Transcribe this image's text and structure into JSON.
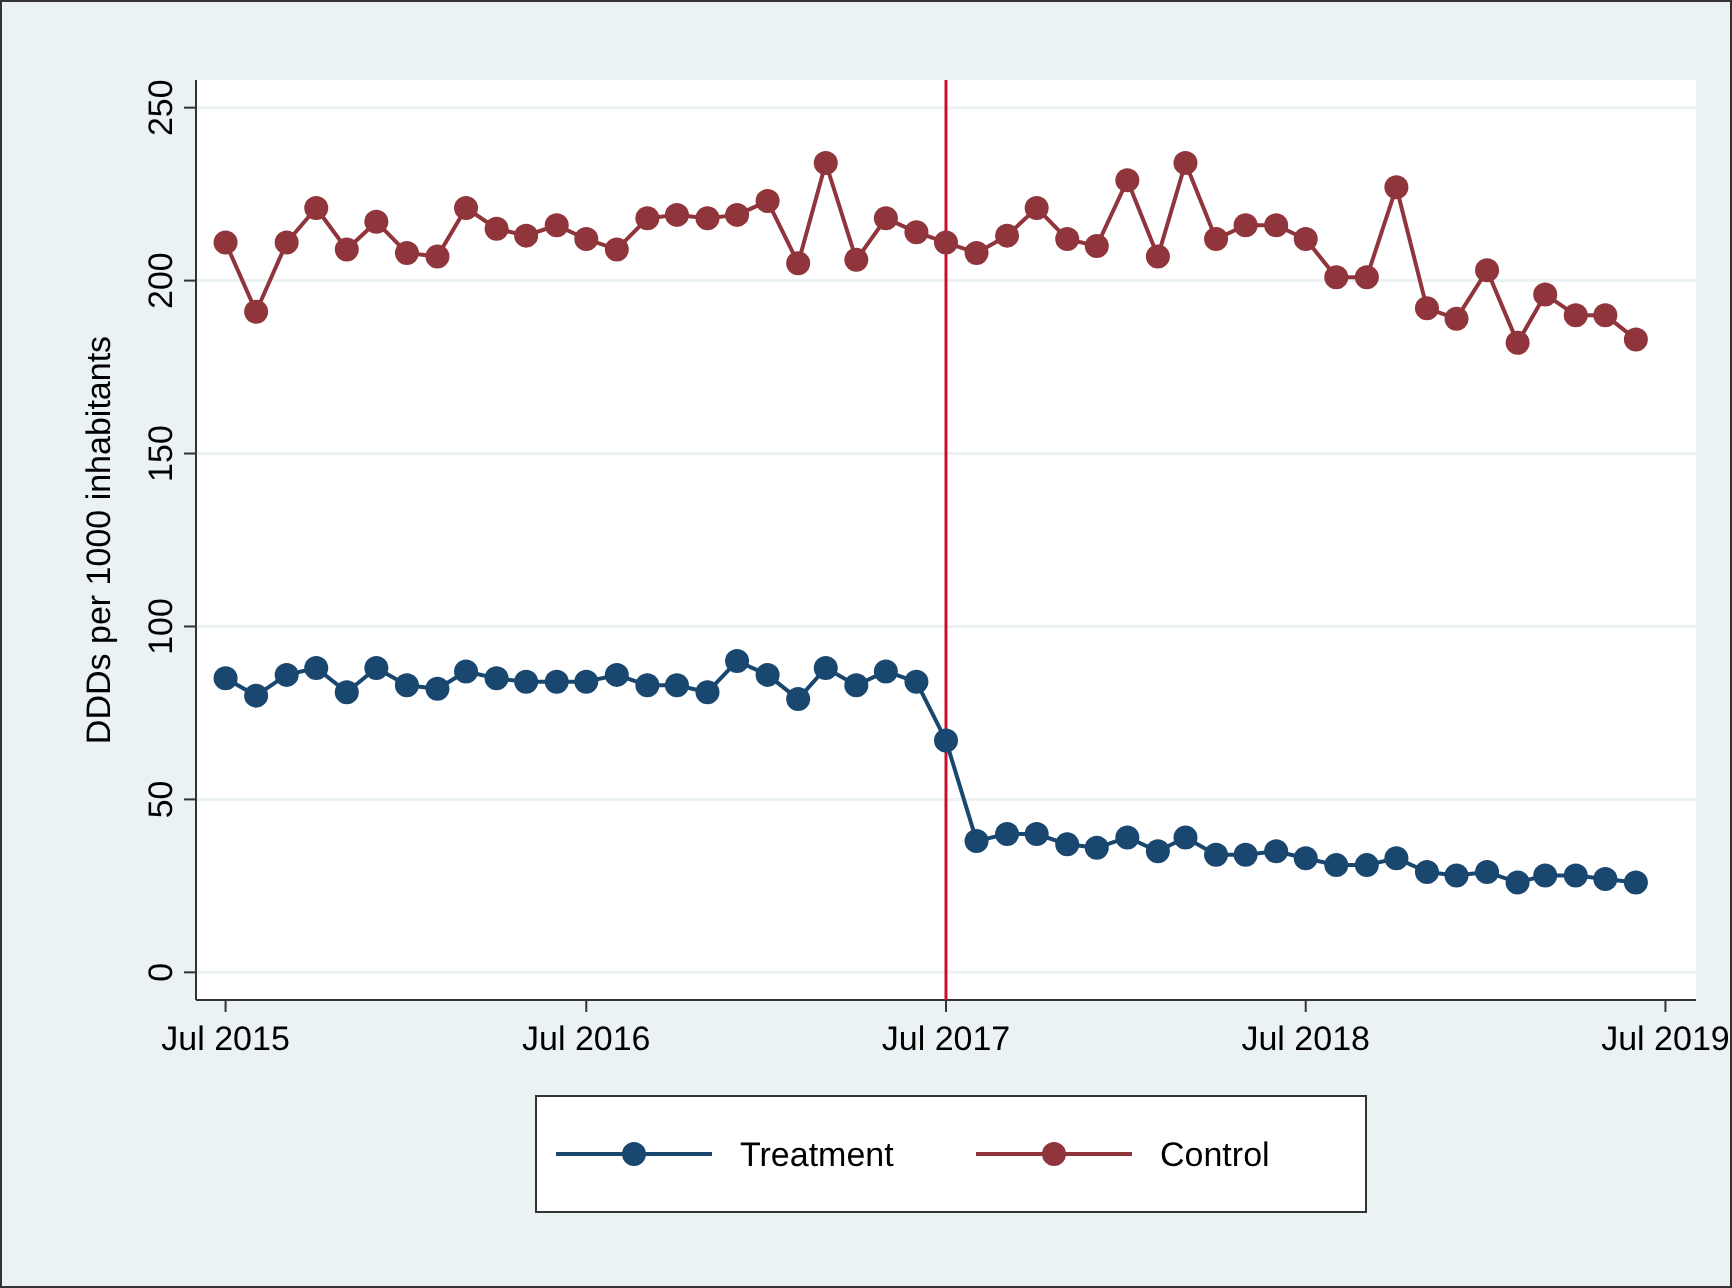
{
  "chart_data": {
    "type": "line",
    "ylabel": "DDDs per 1000 inhabitants",
    "x": [
      "2015-07",
      "2015-08",
      "2015-09",
      "2015-10",
      "2015-11",
      "2015-12",
      "2016-01",
      "2016-02",
      "2016-03",
      "2016-04",
      "2016-05",
      "2016-06",
      "2016-07",
      "2016-08",
      "2016-09",
      "2016-10",
      "2016-11",
      "2016-12",
      "2017-01",
      "2017-02",
      "2017-03",
      "2017-04",
      "2017-05",
      "2017-06",
      "2017-07",
      "2017-08",
      "2017-09",
      "2017-10",
      "2017-11",
      "2017-12",
      "2018-01",
      "2018-02",
      "2018-03",
      "2018-04",
      "2018-05",
      "2018-06",
      "2018-07",
      "2018-08",
      "2018-09",
      "2018-10",
      "2018-11",
      "2018-12",
      "2019-01",
      "2019-02",
      "2019-03",
      "2019-04",
      "2019-05",
      "2019-06"
    ],
    "series": [
      {
        "name": "Treatment",
        "color": "#1a476f",
        "values": [
          85,
          80,
          86,
          88,
          81,
          88,
          83,
          82,
          87,
          85,
          84,
          84,
          84,
          86,
          83,
          83,
          81,
          90,
          86,
          79,
          88,
          83,
          87,
          84,
          67,
          38,
          40,
          40,
          37,
          36,
          39,
          35,
          39,
          34,
          34,
          35,
          33,
          31,
          31,
          33,
          29,
          28,
          29,
          26,
          28,
          28,
          27,
          26
        ]
      },
      {
        "name": "Control",
        "color": "#90353b",
        "values": [
          211,
          191,
          211,
          221,
          209,
          217,
          208,
          207,
          221,
          215,
          213,
          216,
          212,
          209,
          218,
          219,
          218,
          219,
          223,
          205,
          234,
          206,
          218,
          214,
          211,
          208,
          213,
          221,
          212,
          210,
          229,
          207,
          234,
          212,
          216,
          216,
          212,
          201,
          201,
          227,
          192,
          189,
          203,
          182,
          196,
          190,
          190,
          183
        ]
      }
    ],
    "xlim": [
      "2015-06",
      "2019-08"
    ],
    "xticks": [
      {
        "value": "2015-07",
        "label": "Jul 2015"
      },
      {
        "value": "2016-07",
        "label": "Jul 2016"
      },
      {
        "value": "2017-07",
        "label": "Jul 2017"
      },
      {
        "value": "2018-07",
        "label": "Jul 2018"
      },
      {
        "value": "2019-07",
        "label": "Jul 2019"
      }
    ],
    "ylim": [
      -8,
      258
    ],
    "yticks": [
      0,
      50,
      100,
      150,
      200,
      250
    ],
    "ref_lines": [
      {
        "axis": "x",
        "value": "2017-07",
        "color": "#c8102e"
      }
    ],
    "grid": "y",
    "legend": "bottom",
    "marker": "circle",
    "line_style": "solid"
  }
}
